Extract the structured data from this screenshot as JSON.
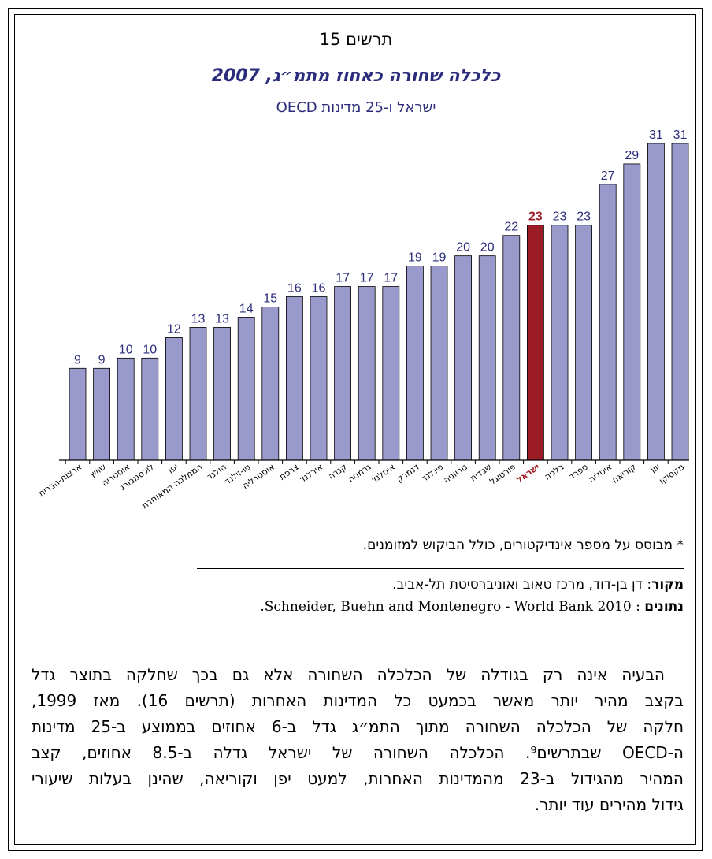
{
  "figure_label": "תרשים 15",
  "title": "כלכלה שחורה כאחוז מתמ״ג, 2007",
  "subtitle": "ישראל ו-25 מדינות OECD",
  "colors": {
    "bar": "#9999cc",
    "highlight_bar": "#9b1c24",
    "value_label": "#2b2d7c",
    "highlight_label": "#9b1c24"
  },
  "chart_data": {
    "type": "bar",
    "title": "כלכלה שחורה כאחוז מתמ״ג, 2007",
    "subtitle": "ישראל ו-25 מדינות OECD",
    "categories": [
      "ארצות-הברית",
      "שוויץ",
      "אוסטריה",
      "לוכסמבורג",
      "יפן",
      "הממלכה המאוחדת",
      "הולנד",
      "ניו-זילנד",
      "אוסטרליה",
      "צרפת",
      "אירלנד",
      "קנדה",
      "גרמניה",
      "איסלנד",
      "דנמרק",
      "פינלנד",
      "נורווגיה",
      "שבדיה",
      "פורטוגל",
      "ישראל",
      "בלגיה",
      "ספרד",
      "איטליה",
      "קוריאה",
      "יוון",
      "מקסיקו"
    ],
    "values": [
      9,
      9,
      10,
      10,
      12,
      13,
      13,
      14,
      15,
      16,
      16,
      17,
      17,
      17,
      19,
      19,
      20,
      20,
      22,
      23,
      23,
      23,
      27,
      29,
      31,
      31
    ],
    "highlight": "ישראל",
    "xlabel": "",
    "ylabel": "",
    "ylim": [
      0,
      31
    ],
    "grid": false,
    "legend": "none"
  },
  "footnote": "* מבוסס על מספר אינדיקטורים, כולל הביקוש למזומנים.",
  "source": {
    "label": "מקור",
    "text": ": דן בן-דוד, מרכז טאוב ואוניברסיטת תל-אביב.",
    "data_label": "נתונים",
    "data_text": ": Schneider, Buehn and Montenegro - World Bank 2010."
  },
  "paragraph": [
    "הבעיה אינה רק בגודלה של הכלכלה השחורה אלא גם בכך שחלקה בתוצר גדל",
    "בקצב מהיר יותר מאשר בכמעט כל המדינות האחרות (תרשים 16). מאז 1999,",
    "חלקה של הכלכלה השחורה מתוך התמ״ג גדל ב-6 אחוזים בממוצע ב-25 מדינות",
    "ה-OECD שבתרשים⁹. הכלכלה השחורה של ישראל גדלה ב-8.5 אחוזים, קצב",
    "המהיר מהגידול ב-23 מהמדינות האחרות, למעט יפן וקוריאה, שהינן בעלות שיעורי",
    "גידול מהירים עוד יותר."
  ]
}
